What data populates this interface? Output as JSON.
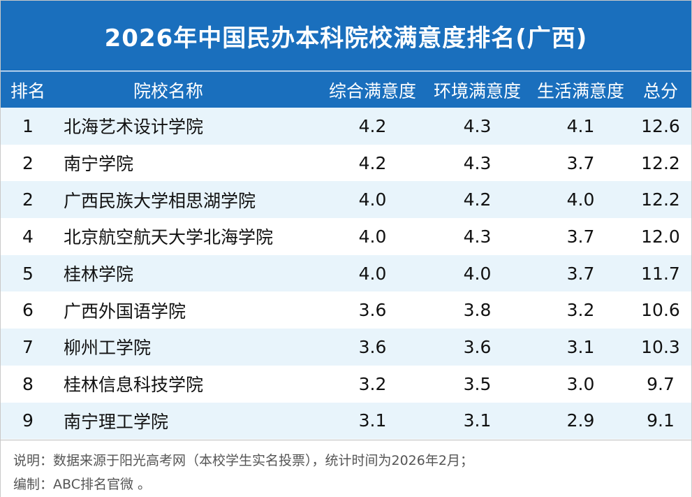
{
  "title": "2026年中国民办本科院校满意度排名(广西)",
  "headers": {
    "rank": "排名",
    "name": "院校名称",
    "overall": "综合满意度",
    "environment": "环境满意度",
    "life": "生活满意度",
    "total": "总分"
  },
  "rows": [
    {
      "rank": "1",
      "name": "北海艺术设计学院",
      "overall": "4.2",
      "environment": "4.3",
      "life": "4.1",
      "total": "12.6"
    },
    {
      "rank": "2",
      "name": "南宁学院",
      "overall": "4.2",
      "environment": "4.3",
      "life": "3.7",
      "total": "12.2"
    },
    {
      "rank": "2",
      "name": "广西民族大学相思湖学院",
      "overall": "4.0",
      "environment": "4.2",
      "life": "4.0",
      "total": "12.2"
    },
    {
      "rank": "4",
      "name": "北京航空航天大学北海学院",
      "overall": "4.0",
      "environment": "4.3",
      "life": "3.7",
      "total": "12.0"
    },
    {
      "rank": "5",
      "name": "桂林学院",
      "overall": "4.0",
      "environment": "4.0",
      "life": "3.7",
      "total": "11.7"
    },
    {
      "rank": "6",
      "name": "广西外国语学院",
      "overall": "3.6",
      "environment": "3.8",
      "life": "3.2",
      "total": "10.6"
    },
    {
      "rank": "7",
      "name": "柳州工学院",
      "overall": "3.6",
      "environment": "3.6",
      "life": "3.1",
      "total": "10.3"
    },
    {
      "rank": "8",
      "name": "桂林信息科技学院",
      "overall": "3.2",
      "environment": "3.5",
      "life": "3.0",
      "total": "9.7"
    },
    {
      "rank": "9",
      "name": "南宁理工学院",
      "overall": "3.1",
      "environment": "3.1",
      "life": "2.9",
      "total": "9.1"
    }
  ],
  "footer": {
    "note": "说明：数据来源于阳光高考网（本校学生实名投票），统计时间为2026年2月；",
    "editor": "编制：ABC排名官微 。"
  },
  "colors": {
    "header_bg": "#1a6fbd",
    "stripe": "#e8f4fb"
  }
}
